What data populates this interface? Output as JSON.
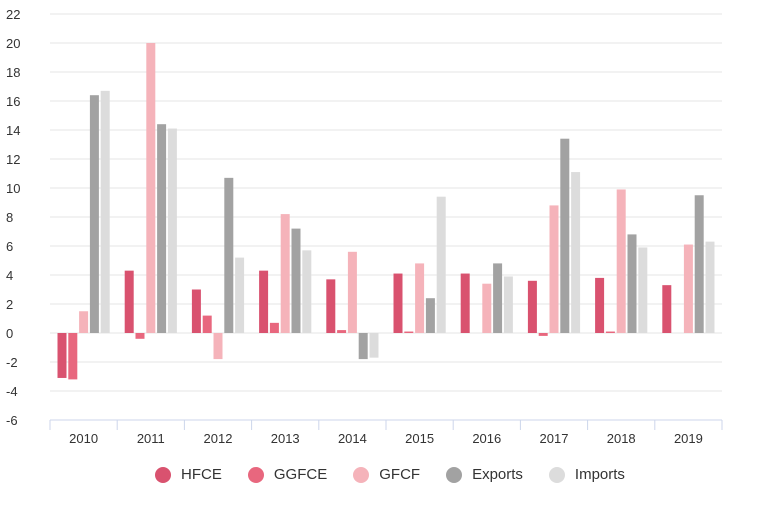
{
  "chart_data": {
    "type": "bar",
    "categories": [
      "2010",
      "2011",
      "2012",
      "2013",
      "2014",
      "2015",
      "2016",
      "2017",
      "2018",
      "2019"
    ],
    "ylim": [
      -6,
      22
    ],
    "yticks": [
      -6,
      -4,
      -2,
      0,
      2,
      4,
      6,
      8,
      10,
      12,
      14,
      16,
      18,
      20,
      22
    ],
    "grid": true,
    "legend_position": "bottom",
    "series": [
      {
        "name": "HFCE",
        "color": "#d9526f",
        "values": [
          -3.1,
          4.3,
          3.0,
          4.3,
          3.7,
          4.1,
          4.1,
          3.6,
          3.8,
          3.3
        ]
      },
      {
        "name": "GGFCE",
        "color": "#e8677e",
        "values": [
          -3.2,
          -0.4,
          1.2,
          0.7,
          0.2,
          0.1,
          0.0,
          -0.2,
          0.1,
          0.0
        ]
      },
      {
        "name": "GFCF",
        "color": "#f5b3ba",
        "values": [
          1.5,
          20.0,
          -1.8,
          8.2,
          5.6,
          4.8,
          3.4,
          8.8,
          9.9,
          6.1
        ]
      },
      {
        "name": "Exports",
        "color": "#a2a2a2",
        "values": [
          16.4,
          14.4,
          10.7,
          7.2,
          -1.8,
          2.4,
          4.8,
          13.4,
          6.8,
          9.5
        ]
      },
      {
        "name": "Imports",
        "color": "#dcdcdc",
        "values": [
          16.7,
          14.1,
          5.2,
          5.7,
          -1.7,
          9.4,
          3.9,
          11.1,
          5.9,
          6.3
        ]
      }
    ]
  }
}
